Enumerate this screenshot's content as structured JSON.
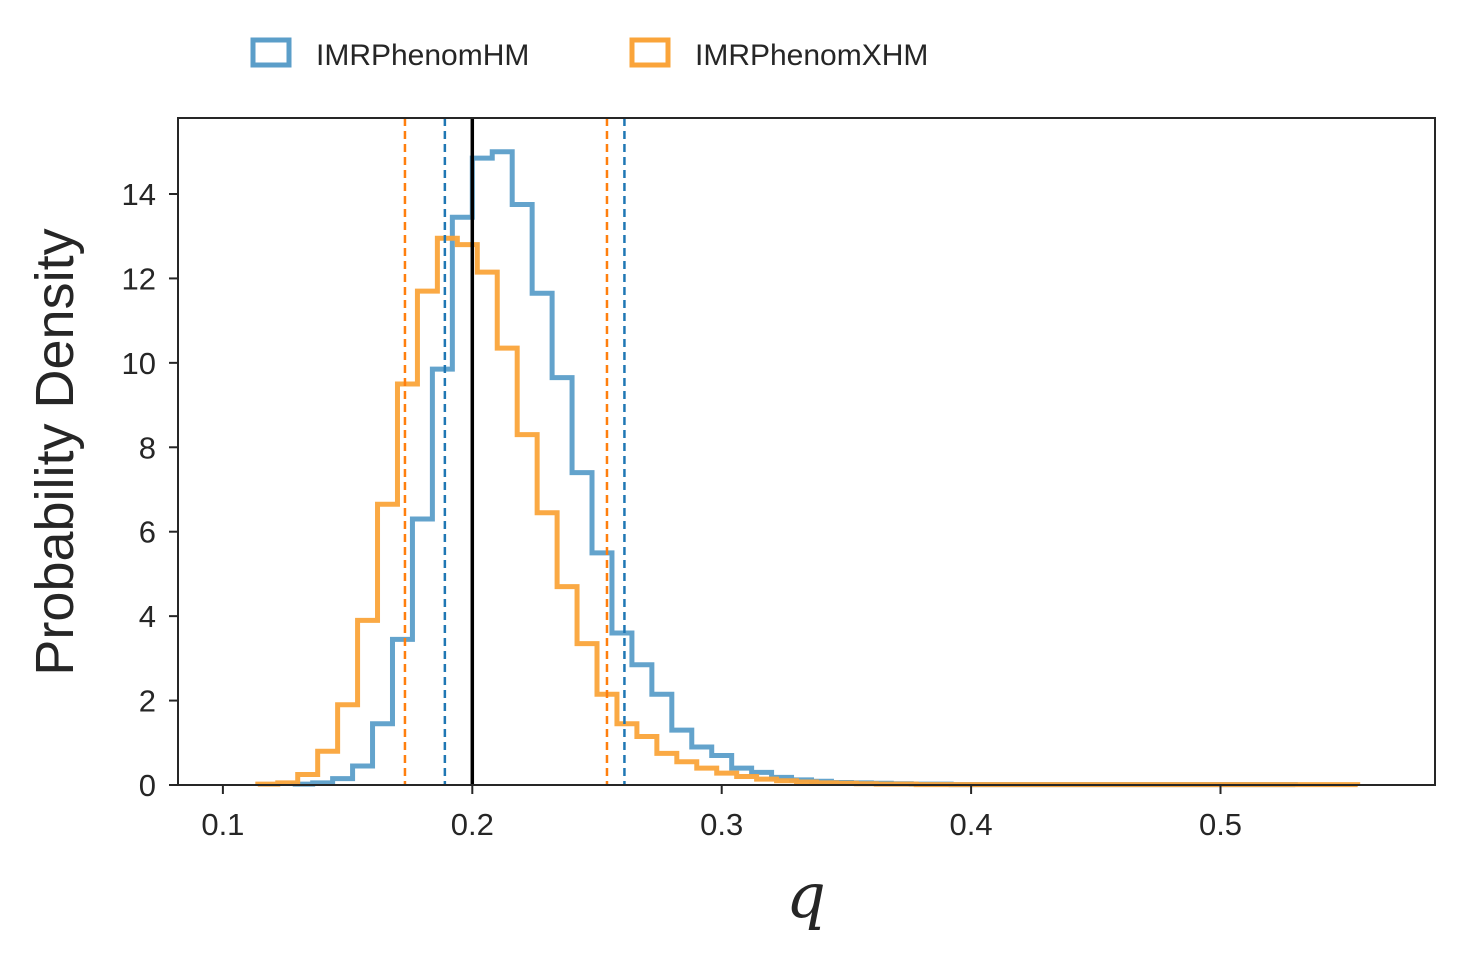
{
  "chart_data": {
    "type": "histogram",
    "title": "",
    "xlabel": "q",
    "ylabel": "Probability Density",
    "xlim": [
      0.082,
      0.586
    ],
    "ylim": [
      0,
      15.8
    ],
    "xticks": [
      0.1,
      0.2,
      0.3,
      0.4,
      0.5
    ],
    "xtick_labels": [
      "0.1",
      "0.2",
      "0.3",
      "0.4",
      "0.5"
    ],
    "yticks": [
      0,
      2,
      4,
      6,
      8,
      10,
      12,
      14
    ],
    "ytick_labels": [
      "0",
      "2",
      "4",
      "6",
      "8",
      "10",
      "12",
      "14"
    ],
    "grid": false,
    "legend_position": "top-left, above axes",
    "series": [
      {
        "name": "IMRPhenomHM",
        "color": "#5b9ec9",
        "bin_edges": [
          0.128,
          0.136,
          0.144,
          0.152,
          0.16,
          0.168,
          0.176,
          0.184,
          0.192,
          0.2,
          0.208,
          0.216,
          0.224,
          0.232,
          0.24,
          0.248,
          0.256,
          0.264,
          0.272,
          0.28,
          0.288,
          0.296,
          0.304,
          0.312,
          0.32,
          0.328,
          0.336,
          0.344,
          0.352,
          0.36,
          0.368,
          0.376,
          0.384,
          0.392,
          0.4,
          0.53
        ],
        "densities": [
          0.02,
          0.05,
          0.15,
          0.45,
          1.45,
          3.45,
          6.3,
          9.85,
          13.45,
          14.85,
          15.0,
          13.75,
          11.65,
          9.65,
          7.4,
          5.5,
          3.6,
          2.85,
          2.15,
          1.3,
          0.9,
          0.7,
          0.4,
          0.3,
          0.18,
          0.12,
          0.09,
          0.06,
          0.05,
          0.04,
          0.03,
          0.02,
          0.02,
          0.01,
          0.01
        ],
        "ci_lower": 0.189,
        "ci_upper": 0.261
      },
      {
        "name": "IMRPhenomXHM",
        "color": "#faa43a",
        "bin_edges": [
          0.114,
          0.122,
          0.13,
          0.138,
          0.146,
          0.154,
          0.162,
          0.17,
          0.178,
          0.186,
          0.194,
          0.202,
          0.21,
          0.218,
          0.226,
          0.234,
          0.242,
          0.25,
          0.258,
          0.266,
          0.274,
          0.282,
          0.29,
          0.298,
          0.306,
          0.314,
          0.322,
          0.33,
          0.338,
          0.346,
          0.354,
          0.362,
          0.37,
          0.378,
          0.386,
          0.394,
          0.555
        ],
        "densities": [
          0.02,
          0.05,
          0.25,
          0.8,
          1.9,
          3.9,
          6.65,
          9.5,
          11.7,
          12.95,
          12.8,
          12.15,
          10.35,
          8.3,
          6.45,
          4.7,
          3.35,
          2.15,
          1.45,
          1.15,
          0.75,
          0.55,
          0.4,
          0.28,
          0.2,
          0.14,
          0.1,
          0.07,
          0.05,
          0.04,
          0.03,
          0.02,
          0.02,
          0.01,
          0.01,
          0.01
        ],
        "ci_lower": 0.173,
        "ci_upper": 0.254
      }
    ],
    "vertical_lines": [
      {
        "x": 0.2,
        "color": "#000000",
        "style": "solid",
        "meaning": "true value"
      },
      {
        "x": 0.173,
        "color": "#ff7f0e",
        "style": "dashed"
      },
      {
        "x": 0.254,
        "color": "#ff7f0e",
        "style": "dashed"
      },
      {
        "x": 0.189,
        "color": "#1f77b4",
        "style": "dashed"
      },
      {
        "x": 0.261,
        "color": "#1f77b4",
        "style": "dashed"
      }
    ]
  },
  "legend": {
    "items": [
      {
        "label": "IMRPhenomHM",
        "color": "#5b9ec9"
      },
      {
        "label": "IMRPhenomXHM",
        "color": "#faa43a"
      }
    ]
  },
  "colors": {
    "axis": "#262626",
    "background": "#ffffff"
  }
}
